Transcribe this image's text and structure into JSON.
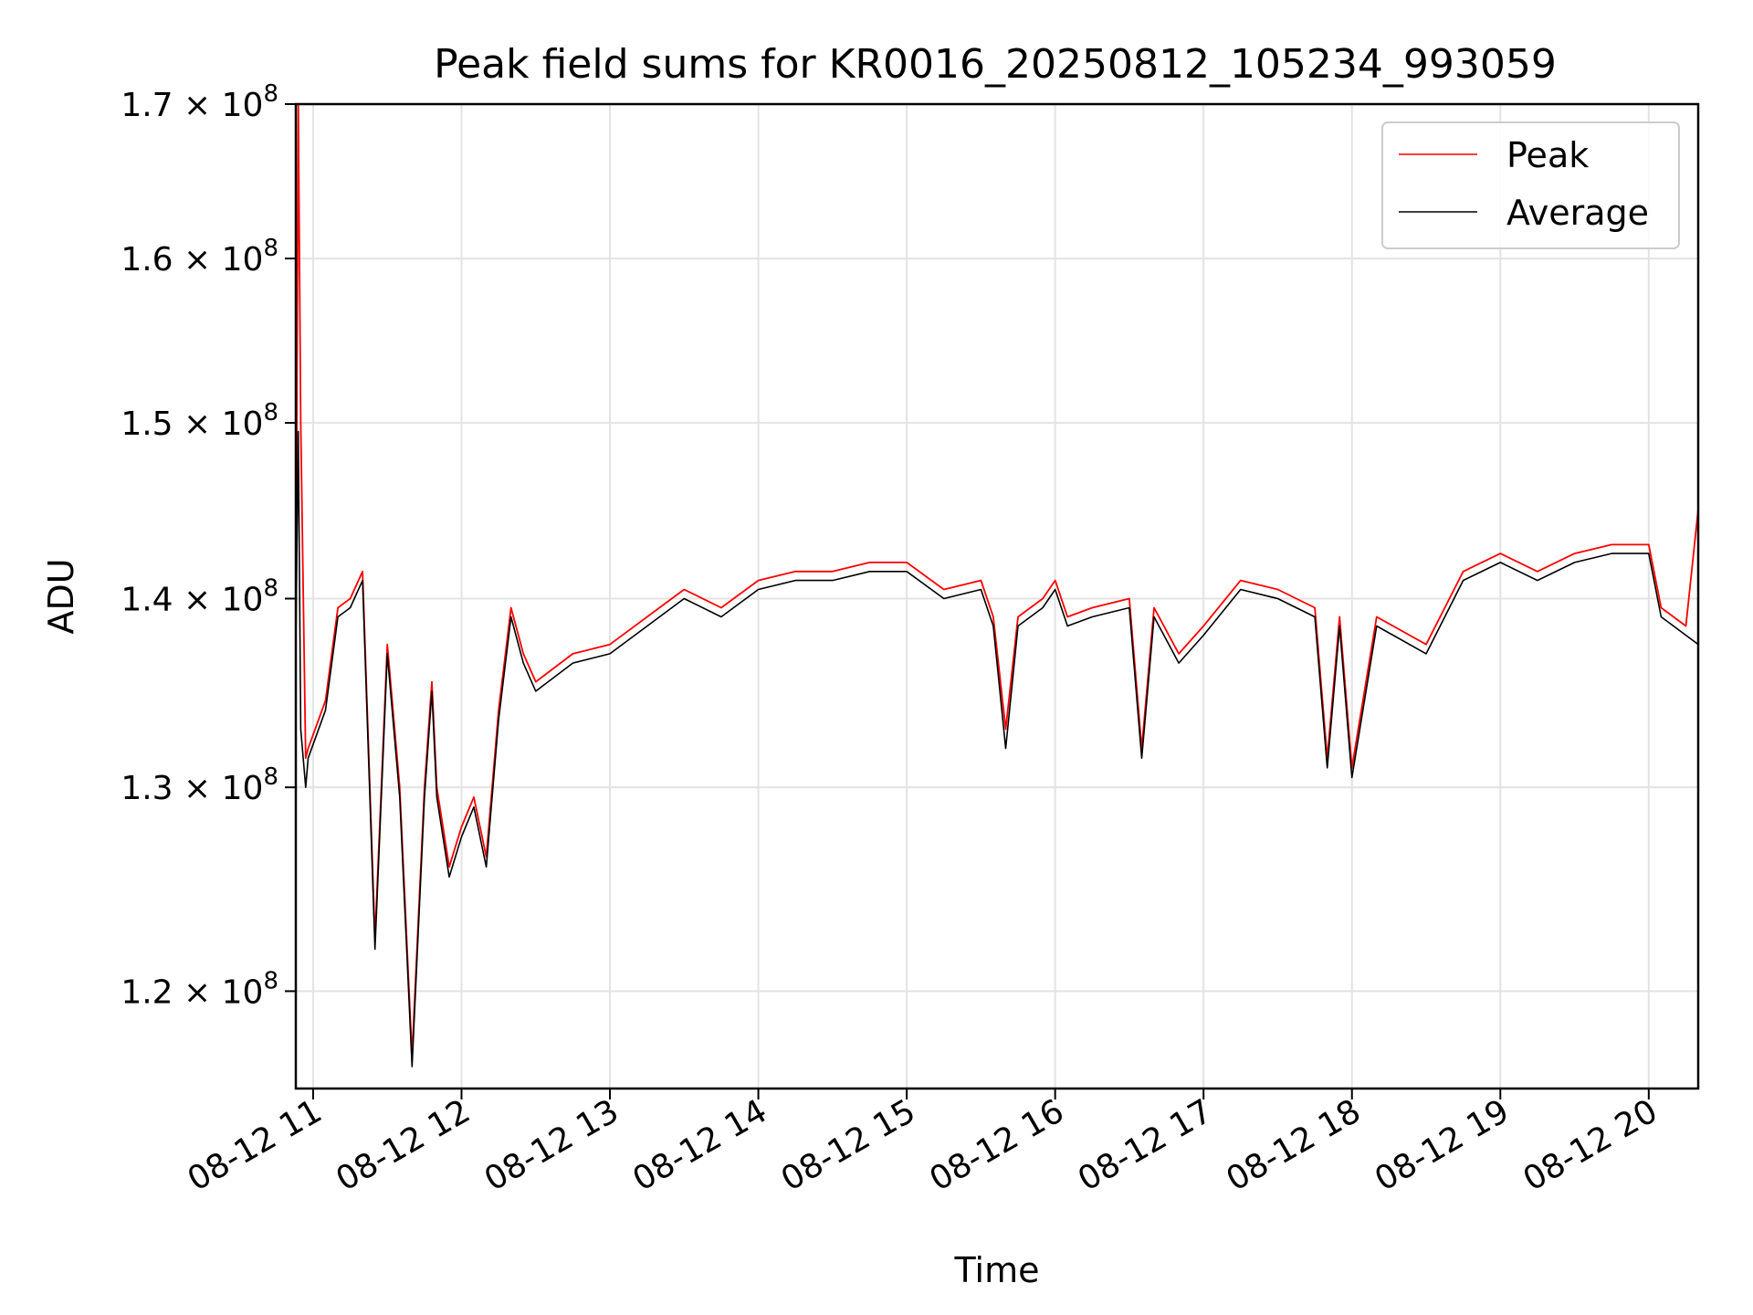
{
  "chart_data": {
    "type": "line",
    "title": "Peak field sums for KR0016_20250812_105234_993059",
    "xlabel": "Time",
    "ylabel": "ADU",
    "xlim": [
      "2025-08-12 10:53",
      "2025-08-12 20:20"
    ],
    "ylim": [
      115500000,
      170000000
    ],
    "y_scale": "log",
    "grid": true,
    "legend_position": "upper right",
    "x_ticks": [
      "08-12 11",
      "08-12 12",
      "08-12 13",
      "08-12 14",
      "08-12 15",
      "08-12 16",
      "08-12 17",
      "08-12 18",
      "08-12 19",
      "08-12 20"
    ],
    "y_ticks": [
      {
        "value": 120000000,
        "mantissa": "1.2",
        "exponent": "8"
      },
      {
        "value": 130000000,
        "mantissa": "1.3",
        "exponent": "8"
      },
      {
        "value": 140000000,
        "mantissa": "1.4",
        "exponent": "8"
      },
      {
        "value": 150000000,
        "mantissa": "1.5",
        "exponent": "8"
      },
      {
        "value": 160000000,
        "mantissa": "1.6",
        "exponent": "8"
      },
      {
        "value": 170000000,
        "mantissa": "1.7",
        "exponent": "8"
      }
    ],
    "series": [
      {
        "name": "Peak",
        "color": "#ff0000"
      },
      {
        "name": "Average",
        "color": "#000000"
      }
    ],
    "x": [
      "2025-08-12 10:53",
      "2025-08-12 10:54",
      "2025-08-12 10:55",
      "2025-08-12 10:57",
      "2025-08-12 10:58",
      "2025-08-12 11:05",
      "2025-08-12 11:10",
      "2025-08-12 11:15",
      "2025-08-12 11:20",
      "2025-08-12 11:25",
      "2025-08-12 11:30",
      "2025-08-12 11:35",
      "2025-08-12 11:40",
      "2025-08-12 11:45",
      "2025-08-12 11:48",
      "2025-08-12 11:50",
      "2025-08-12 11:55",
      "2025-08-12 12:00",
      "2025-08-12 12:05",
      "2025-08-12 12:10",
      "2025-08-12 12:15",
      "2025-08-12 12:20",
      "2025-08-12 12:25",
      "2025-08-12 12:30",
      "2025-08-12 12:45",
      "2025-08-12 13:00",
      "2025-08-12 13:30",
      "2025-08-12 13:45",
      "2025-08-12 14:00",
      "2025-08-12 14:15",
      "2025-08-12 14:30",
      "2025-08-12 14:45",
      "2025-08-12 15:00",
      "2025-08-12 15:15",
      "2025-08-12 15:30",
      "2025-08-12 15:35",
      "2025-08-12 15:40",
      "2025-08-12 15:45",
      "2025-08-12 15:55",
      "2025-08-12 16:00",
      "2025-08-12 16:05",
      "2025-08-12 16:15",
      "2025-08-12 16:30",
      "2025-08-12 16:35",
      "2025-08-12 16:40",
      "2025-08-12 16:50",
      "2025-08-12 17:00",
      "2025-08-12 17:15",
      "2025-08-12 17:30",
      "2025-08-12 17:45",
      "2025-08-12 17:50",
      "2025-08-12 17:55",
      "2025-08-12 18:00",
      "2025-08-12 18:10",
      "2025-08-12 18:30",
      "2025-08-12 18:45",
      "2025-08-12 19:00",
      "2025-08-12 19:15",
      "2025-08-12 19:30",
      "2025-08-12 19:45",
      "2025-08-12 20:00",
      "2025-08-12 20:05",
      "2025-08-12 20:15",
      "2025-08-12 20:20"
    ],
    "values_peak": [
      138000000,
      170000000,
      150000000,
      131500000,
      132000000,
      134500000,
      139500000,
      140000000,
      141500000,
      122500000,
      137500000,
      130000000,
      117000000,
      130000000,
      135500000,
      130000000,
      126000000,
      128000000,
      129500000,
      126500000,
      134000000,
      139500000,
      137000000,
      135500000,
      137000000,
      137500000,
      140500000,
      139500000,
      141000000,
      141500000,
      141500000,
      142000000,
      142000000,
      140500000,
      141000000,
      139000000,
      133000000,
      139000000,
      140000000,
      141000000,
      139000000,
      139500000,
      140000000,
      132000000,
      139500000,
      137000000,
      138500000,
      141000000,
      140500000,
      139500000,
      131500000,
      139000000,
      131000000,
      139000000,
      137500000,
      141500000,
      142500000,
      141500000,
      142500000,
      143000000,
      143000000,
      139500000,
      138500000,
      145000000
    ],
    "values_avg": [
      137500000,
      149500000,
      133000000,
      130000000,
      131500000,
      134000000,
      139000000,
      139500000,
      141000000,
      122000000,
      137000000,
      129500000,
      116500000,
      129500000,
      135000000,
      129500000,
      125500000,
      127500000,
      129000000,
      126000000,
      133500000,
      139000000,
      136500000,
      135000000,
      136500000,
      137000000,
      140000000,
      139000000,
      140500000,
      141000000,
      141000000,
      141500000,
      141500000,
      140000000,
      140500000,
      138500000,
      132000000,
      138500000,
      139500000,
      140500000,
      138500000,
      139000000,
      139500000,
      131500000,
      139000000,
      136500000,
      138000000,
      140500000,
      140000000,
      139000000,
      131000000,
      138500000,
      130500000,
      138500000,
      137000000,
      141000000,
      142000000,
      141000000,
      142000000,
      142500000,
      142500000,
      139000000,
      138000000,
      137500000
    ]
  }
}
